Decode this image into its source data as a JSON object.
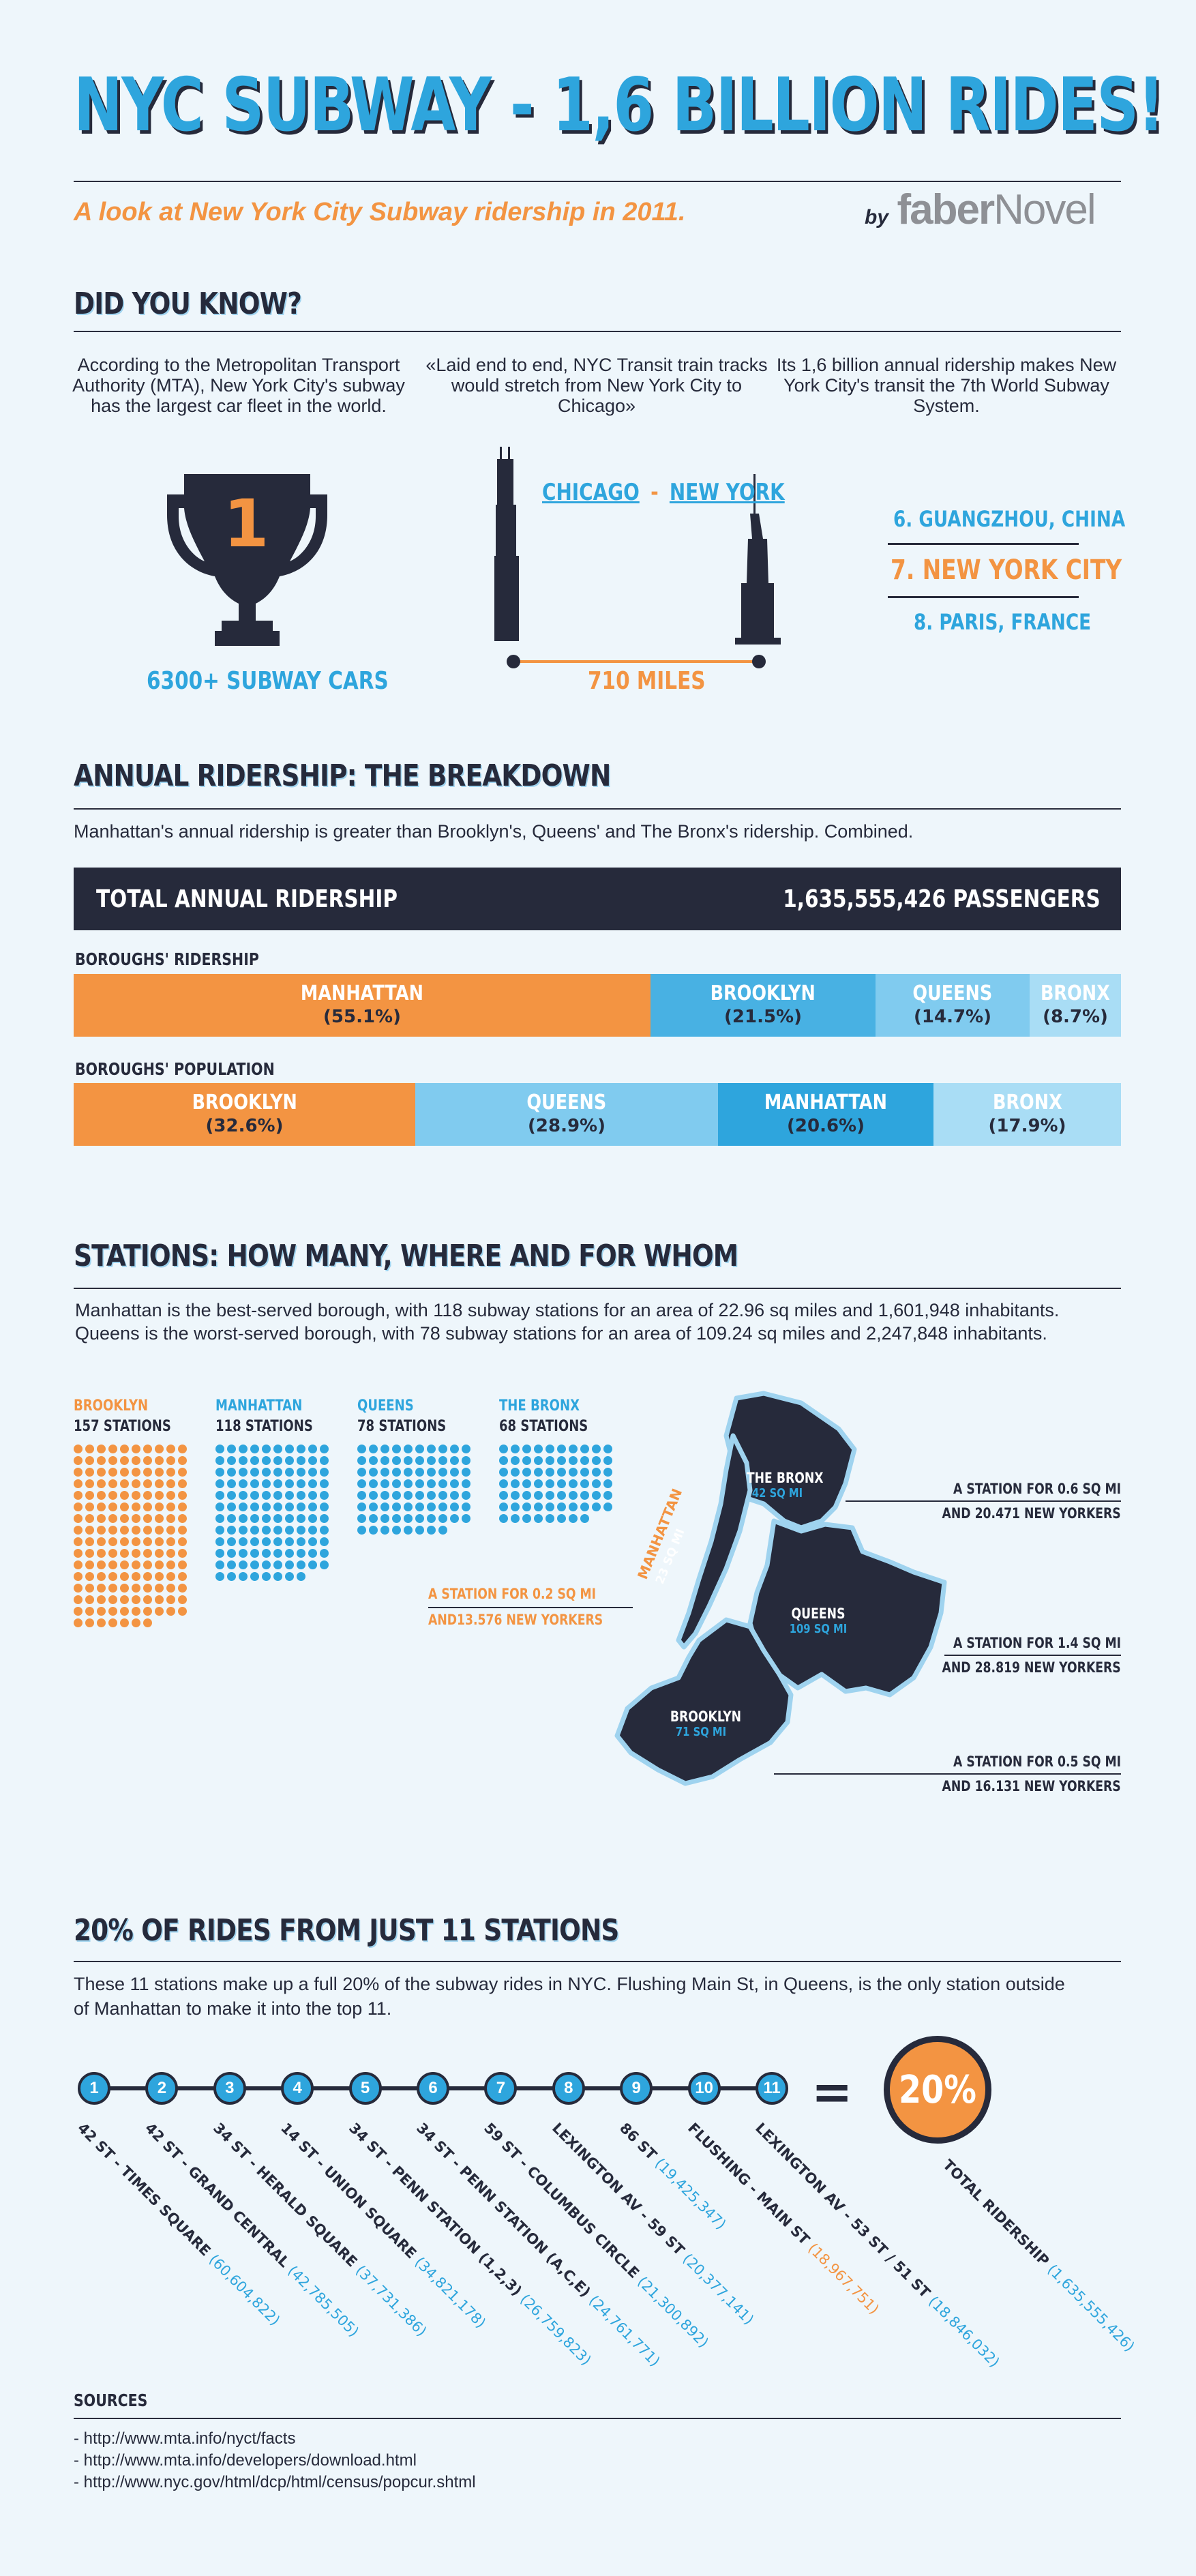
{
  "header": {
    "title": "NYC SUBWAY - 1,6 BILLION RIDES!",
    "subtitle": "A look at New York City Subway ridership in 2011.",
    "by": "by",
    "brand_a": "faber",
    "brand_b": "Novel"
  },
  "did_you_know": {
    "title": "DID YOU KNOW?",
    "facts": [
      {
        "text": "According to the Metropolitan Transport Authority (MTA), New York City's subway has the largest car fleet in the world.",
        "trophy_number": "1",
        "caption": "6300+ SUBWAY CARS"
      },
      {
        "text": "«Laid end to end, NYC Transit train tracks would stretch from New York City to Chicago»",
        "city_a": "CHICAGO",
        "sep": "-",
        "city_b": "NEW YORK",
        "caption": "710 MILES"
      },
      {
        "text": "Its 1,6 billion annual ridership makes New York City's transit the 7th World Subway System.",
        "rank_6": "6. GUANGZHOU, CHINA",
        "rank_7": "7. NEW YORK CITY",
        "rank_8": "8. PARIS, FRANCE"
      }
    ]
  },
  "ridership": {
    "title": "ANNUAL RIDERSHIP: THE BREAKDOWN",
    "intro": "Manhattan's annual ridership is greater than Brooklyn's, Queens' and The Bronx's ridership. Combined.",
    "total_label": "TOTAL ANNUAL RIDERSHIP",
    "total_value": "1,635,555,426 PASSENGERS",
    "boroughs_ridership_label": "BOROUGHS' RIDERSHIP",
    "boroughs_ridership": [
      {
        "name": "MANHATTAN",
        "pct": "(55.1%)",
        "share": 55.1,
        "color": "#f39442"
      },
      {
        "name": "BROOKLYN",
        "pct": "(21.5%)",
        "share": 21.5,
        "color": "#48b1e3"
      },
      {
        "name": "QUEENS",
        "pct": "(14.7%)",
        "share": 14.7,
        "color": "#80cbef"
      },
      {
        "name": "BRONX",
        "pct": "(8.7%)",
        "share": 8.7,
        "color": "#a9ddf5"
      }
    ],
    "boroughs_population_label": "BOROUGHS' POPULATION",
    "boroughs_population": [
      {
        "name": "BROOKLYN",
        "pct": "(32.6%)",
        "share": 32.6,
        "color": "#f39442"
      },
      {
        "name": "QUEENS",
        "pct": "(28.9%)",
        "share": 28.9,
        "color": "#80cbef"
      },
      {
        "name": "MANHATTAN",
        "pct": "(20.6%)",
        "share": 20.6,
        "color": "#2ea5dd"
      },
      {
        "name": "BRONX",
        "pct": "(17.9%)",
        "share": 17.9,
        "color": "#a9ddf5"
      }
    ]
  },
  "stations": {
    "title": "STATIONS: HOW MANY, WHERE AND FOR WHOM",
    "intro_1": "Manhattan  is the best-served borough, with 118 subway stations for an area of 22.96 sq miles and 1,601,948 inhabitants.",
    "intro_2": "Queens is the worst-served borough, with 78 subway stations for an area of 109.24 sq  miles and 2,247,848 inhabitants.",
    "boroughs": [
      {
        "name": "BROOKLYN",
        "count_label": "157 STATIONS",
        "count": 157,
        "color": "#f39442"
      },
      {
        "name": "MANHATTAN",
        "count_label": "118 STATIONS",
        "count": 118,
        "color": "#2ea5dd"
      },
      {
        "name": "QUEENS",
        "count_label": "78 STATIONS",
        "count": 78,
        "color": "#2ea5dd"
      },
      {
        "name": "THE BRONX",
        "count_label": "68 STATIONS",
        "count": 68,
        "color": "#2ea5dd"
      }
    ],
    "map": {
      "bronx_name": "THE BRONX",
      "bronx_area": "42 SQ MI",
      "manhattan_name": "MANHATTAN",
      "manhattan_area": "23 SQ MI",
      "queens_name": "QUEENS",
      "queens_area": "109 SQ MI",
      "brooklyn_name": "BROOKLYN",
      "brooklyn_area": "71 SQ MI"
    },
    "callouts": {
      "manhattan_1": "A STATION FOR 0.2 SQ MI",
      "manhattan_2": "AND13.576 NEW YORKERS",
      "bronx_1": "A STATION FOR 0.6 SQ MI",
      "bronx_2": "AND 20.471 NEW YORKERS",
      "queens_1": "A STATION FOR 1.4 SQ MI",
      "queens_2": "AND 28.819 NEW YORKERS",
      "brooklyn_1": "A STATION FOR 0.5 SQ MI",
      "brooklyn_2": "AND 16.131 NEW YORKERS"
    }
  },
  "top11": {
    "title": "20% OF RIDES FROM JUST 11 STATIONS",
    "intro_1": "These 11 stations make up a full 20% of the subway rides in NYC.  Flushing Main St, in Queens, is the only station outside",
    "intro_2": "of Manhattan to make it into the top 11.",
    "equals": "=",
    "big_pct": "20%",
    "total_label": "TOTAL RIDERSHIP",
    "total_value": "(1,635,555,426)",
    "stations": [
      {
        "n": "1",
        "name": "42 ST - TIMES SQUARE",
        "value": "(60,604,822)"
      },
      {
        "n": "2",
        "name": "42 ST - GRAND CENTRAL",
        "value": "(42,785,505)"
      },
      {
        "n": "3",
        "name": "34 ST - HERALD SQUARE",
        "value": "(37,731,386)"
      },
      {
        "n": "4",
        "name": "14 ST - UNION SQUARE",
        "value": "(34,821,178)"
      },
      {
        "n": "5",
        "name": "34 ST - PENN STATION (1,2,3)",
        "value": "(26,759,823)"
      },
      {
        "n": "6",
        "name": "34 ST - PENN STATION (A,C,E)",
        "value": "(24,761,771)"
      },
      {
        "n": "7",
        "name": "59 ST - COLUMBUS CIRCLE",
        "value": "(21,300,892)"
      },
      {
        "n": "8",
        "name": "LEXINGTON AV - 59 ST",
        "value": "(20,377,141)"
      },
      {
        "n": "9",
        "name": "86 ST",
        "value": "(19,425,347)"
      },
      {
        "n": "10",
        "name": "FLUSHING - MAIN ST",
        "value": "(18,967,751)"
      },
      {
        "n": "11",
        "name": "LEXINGTON AV - 53 ST / 51 ST",
        "value": "(18,846,032)"
      }
    ]
  },
  "sources": {
    "title": "SOURCES",
    "items": [
      "- http://www.mta.info/nyct/facts",
      "- http://www.mta.info/developers/download.html",
      "- http://www.nyc.gov/html/dcp/html/census/popcur.shtml"
    ]
  }
}
